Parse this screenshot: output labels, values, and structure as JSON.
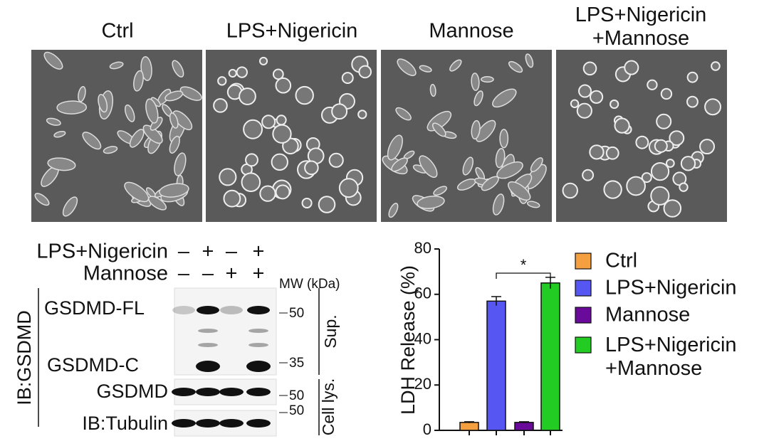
{
  "images": {
    "labels": [
      "Ctrl",
      "LPS+Nigericin",
      "Mannose",
      "LPS+Nigericin\n+Mannose"
    ]
  },
  "blot": {
    "treatments": [
      {
        "label": "LPS+Nigericin",
        "signs": [
          "–",
          "+",
          "–",
          "+"
        ]
      },
      {
        "label": "Mannose",
        "signs": [
          "–",
          "–",
          "+",
          "+"
        ]
      }
    ],
    "mw_title": "MW (kDa)",
    "band_labels": [
      "GSDMD-FL",
      "GSDMD-C",
      "GSDMD",
      "IB:Tubulin"
    ],
    "mw_markers": [
      "50",
      "35",
      "50",
      "50"
    ],
    "fraction_labels": [
      "Sup.",
      "Cell lys."
    ],
    "ib_label": "IB:GSDMD"
  },
  "chart_data": {
    "type": "bar",
    "ylabel": "LDH Release (%)",
    "series": [
      {
        "name": "Ctrl",
        "color": "#f5a040",
        "values": [
          3.5
        ],
        "errors": [
          0.3
        ]
      },
      {
        "name": "LPS+Nigericin",
        "color": "#5656f2",
        "values": [
          57
        ],
        "errors": [
          2
        ]
      },
      {
        "name": "Mannose",
        "color": "#6a0a9a",
        "values": [
          3.5
        ],
        "errors": [
          0.3
        ]
      },
      {
        "name": "LPS+Nigericin\n+Mannose",
        "color": "#22cc22",
        "values": [
          65
        ],
        "errors": [
          2.5
        ]
      }
    ],
    "ylim": [
      0,
      80
    ],
    "yticks": [
      0,
      20,
      40,
      60,
      80
    ],
    "significance": "*"
  }
}
